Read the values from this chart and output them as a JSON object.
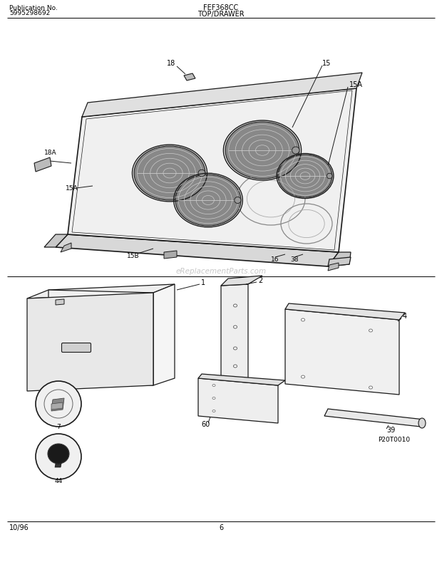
{
  "title_left_line1": "Publication No.",
  "title_left_line2": "5995298692",
  "title_center": "FEF368CC",
  "title_section": "TOP/DRAWER",
  "footer_left": "10/96",
  "footer_center": "6",
  "watermark": "eReplacementParts.com",
  "part_code": "P20T0010",
  "bg": "#ffffff",
  "lc": "#1a1a1a"
}
